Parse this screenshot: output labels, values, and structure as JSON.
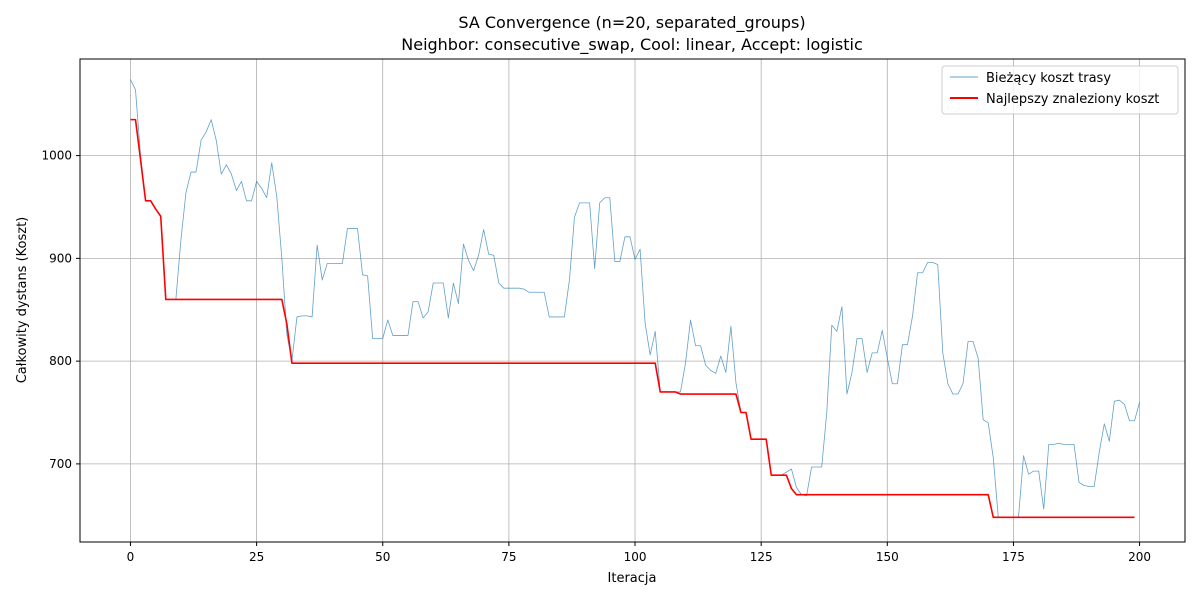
{
  "chart_data": {
    "type": "line",
    "title": "SA Convergence (n=20, separated_groups)",
    "subtitle": "Neighbor: consecutive_swap, Cool: linear, Accept: logistic",
    "xlabel": "Iteracja",
    "ylabel": "Całkowity dystans (Koszt)",
    "xlim": [
      -10,
      209
    ],
    "ylim": [
      624,
      1094
    ],
    "xticks": [
      0,
      25,
      50,
      75,
      100,
      125,
      150,
      175,
      200
    ],
    "yticks": [
      700,
      800,
      900,
      1000
    ],
    "grid": true,
    "legend_position": "top-right",
    "series": [
      {
        "name": "Bieżący koszt trasy",
        "color": "#1f77b4",
        "values": [
          1074,
          1064,
          1000,
          956,
          956,
          948,
          941,
          860,
          860,
          860,
          918,
          964,
          984,
          984,
          1015,
          1023,
          1035,
          1015,
          982,
          991,
          982,
          966,
          975,
          956,
          956,
          975,
          968,
          959,
          993,
          960,
          900,
          826,
          800,
          843,
          844,
          844,
          843,
          913,
          879,
          895,
          895,
          895,
          895,
          929,
          929,
          929,
          884,
          883,
          822,
          822,
          822,
          840,
          825,
          825,
          825,
          825,
          858,
          858,
          842,
          848,
          876,
          876,
          876,
          842,
          876,
          856,
          914,
          898,
          888,
          903,
          928,
          904,
          903,
          876,
          871,
          871,
          871,
          871,
          870,
          867,
          867,
          867,
          867,
          843,
          843,
          843,
          843,
          879,
          940,
          954,
          954,
          954,
          890,
          954,
          959,
          959,
          897,
          897,
          921,
          921,
          899,
          909,
          837,
          806,
          829,
          770,
          770,
          770,
          770,
          770,
          798,
          840,
          815,
          815,
          796,
          791,
          788,
          805,
          789,
          834,
          779,
          750,
          750,
          724,
          724,
          724,
          724,
          689,
          689,
          689,
          692,
          695,
          677,
          670,
          669,
          697,
          697,
          697,
          750,
          835,
          829,
          853,
          768,
          789,
          822,
          822,
          789,
          808,
          808,
          830,
          803,
          778,
          778,
          816,
          816,
          844,
          886,
          886,
          896,
          896,
          894,
          808,
          778,
          768,
          768,
          778,
          819,
          819,
          803,
          743,
          740,
          706,
          648,
          648,
          648,
          648,
          648,
          708,
          690,
          693,
          693,
          656,
          719,
          719,
          720,
          719,
          719,
          719,
          682,
          679,
          678,
          678,
          711,
          739,
          722,
          761,
          762,
          758,
          742,
          742,
          760
        ]
      },
      {
        "name": "Najlepszy znaleziony koszt",
        "color": "#ff0000",
        "values": [
          1035,
          1035,
          996,
          956,
          956,
          948,
          941,
          860,
          860,
          860,
          860,
          860,
          860,
          860,
          860,
          860,
          860,
          860,
          860,
          860,
          860,
          860,
          860,
          860,
          860,
          860,
          860,
          860,
          860,
          860,
          860,
          836,
          798,
          798,
          798,
          798,
          798,
          798,
          798,
          798,
          798,
          798,
          798,
          798,
          798,
          798,
          798,
          798,
          798,
          798,
          798,
          798,
          798,
          798,
          798,
          798,
          798,
          798,
          798,
          798,
          798,
          798,
          798,
          798,
          798,
          798,
          798,
          798,
          798,
          798,
          798,
          798,
          798,
          798,
          798,
          798,
          798,
          798,
          798,
          798,
          798,
          798,
          798,
          798,
          798,
          798,
          798,
          798,
          798,
          798,
          798,
          798,
          798,
          798,
          798,
          798,
          798,
          798,
          798,
          798,
          798,
          798,
          798,
          798,
          798,
          770,
          770,
          770,
          770,
          768,
          768,
          768,
          768,
          768,
          768,
          768,
          768,
          768,
          768,
          768,
          768,
          750,
          750,
          724,
          724,
          724,
          724,
          689,
          689,
          689,
          689,
          676,
          670,
          670,
          670,
          670,
          670,
          670,
          670,
          670,
          670,
          670,
          670,
          670,
          670,
          670,
          670,
          670,
          670,
          670,
          670,
          670,
          670,
          670,
          670,
          670,
          670,
          670,
          670,
          670,
          670,
          670,
          670,
          670,
          670,
          670,
          670,
          670,
          670,
          670,
          670,
          648,
          648,
          648,
          648,
          648,
          648,
          648,
          648,
          648,
          648,
          648,
          648,
          648,
          648,
          648,
          648,
          648,
          648,
          648,
          648,
          648,
          648,
          648,
          648,
          648,
          648,
          648,
          648,
          648
        ]
      }
    ]
  }
}
